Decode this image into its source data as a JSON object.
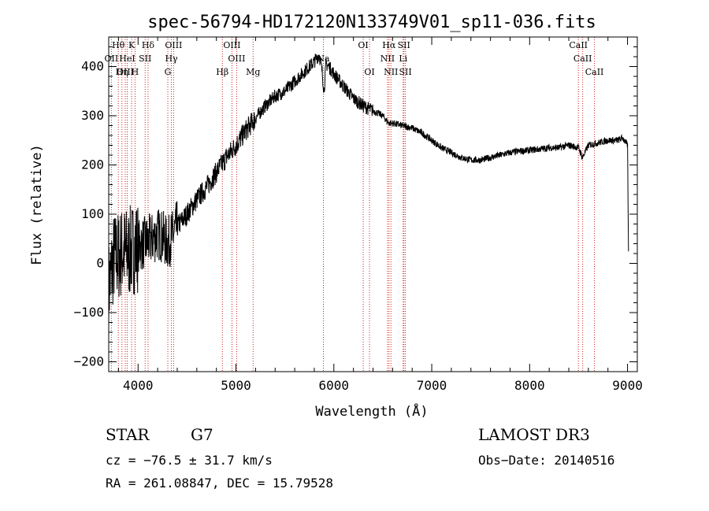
{
  "chart_data": {
    "type": "line",
    "title": "spec-56794-HD172120N133749V01_sp11-036.fits",
    "xlabel": "Wavelength (Å)",
    "ylabel": "Flux (relative)",
    "xlim": [
      3700,
      9100
    ],
    "ylim": [
      -220,
      460
    ],
    "xticks": [
      4000,
      5000,
      6000,
      7000,
      8000,
      9000
    ],
    "yticks": [
      -200,
      -100,
      0,
      100,
      200,
      300,
      400
    ],
    "series": [
      {
        "name": "flux",
        "x": [
          3700,
          3750,
          3800,
          3850,
          3900,
          3950,
          4000,
          4050,
          4100,
          4150,
          4200,
          4250,
          4300,
          4350,
          4400,
          4500,
          4600,
          4700,
          4800,
          4900,
          5000,
          5100,
          5200,
          5300,
          5400,
          5500,
          5600,
          5700,
          5800,
          5850,
          5880,
          5900,
          5920,
          5950,
          6000,
          6100,
          6200,
          6300,
          6400,
          6500,
          6560,
          6600,
          6700,
          6800,
          6900,
          7000,
          7100,
          7200,
          7300,
          7400,
          7500,
          7600,
          7700,
          7800,
          7900,
          8000,
          8100,
          8200,
          8300,
          8400,
          8500,
          8540,
          8600,
          8700,
          8800,
          8900,
          8950,
          9000,
          9010
        ],
        "y": [
          -50,
          10,
          15,
          25,
          20,
          30,
          35,
          40,
          45,
          50,
          60,
          55,
          40,
          55,
          75,
          100,
          130,
          155,
          185,
          215,
          240,
          270,
          295,
          320,
          340,
          350,
          370,
          390,
          410,
          425,
          390,
          350,
          405,
          400,
          385,
          360,
          335,
          320,
          310,
          300,
          285,
          285,
          280,
          275,
          265,
          250,
          235,
          225,
          215,
          210,
          210,
          215,
          220,
          225,
          228,
          230,
          232,
          235,
          235,
          240,
          235,
          215,
          240,
          245,
          250,
          250,
          255,
          240,
          20
        ]
      }
    ],
    "spectral_lines": [
      {
        "label": "Hθ",
        "wave": 3798,
        "row": 0
      },
      {
        "label": "OII",
        "wave": 3727,
        "row": 1
      },
      {
        "label": "OIII",
        "wave": 3869,
        "row": 2
      },
      {
        "label": "Hη",
        "wave": 3835,
        "row": 2
      },
      {
        "label": "HeI",
        "wave": 3889,
        "row": 1
      },
      {
        "label": "K",
        "wave": 3934,
        "row": 0
      },
      {
        "label": "H",
        "wave": 3969,
        "row": 2
      },
      {
        "label": "SII",
        "wave": 4072,
        "row": 1
      },
      {
        "label": "Hδ",
        "wave": 4102,
        "row": 0
      },
      {
        "label": "OIII",
        "wave": 4363,
        "row": 0
      },
      {
        "label": "Hγ",
        "wave": 4340,
        "row": 1
      },
      {
        "label": "G",
        "wave": 4304,
        "row": 2
      },
      {
        "label": "OIII",
        "wave": 4959,
        "row": 0
      },
      {
        "label": "OIII",
        "wave": 5007,
        "row": 1
      },
      {
        "label": "Hβ",
        "wave": 4861,
        "row": 2
      },
      {
        "label": "Mg",
        "wave": 5175,
        "row": 2
      },
      {
        "label": "Na",
        "wave": 5893,
        "row": 1
      },
      {
        "label": "OI",
        "wave": 6300,
        "row": 0
      },
      {
        "label": "OI",
        "wave": 6364,
        "row": 2
      },
      {
        "label": "Hα",
        "wave": 6563,
        "row": 0
      },
      {
        "label": "NII",
        "wave": 6548,
        "row": 1
      },
      {
        "label": "NII",
        "wave": 6583,
        "row": 2
      },
      {
        "label": "SII",
        "wave": 6716,
        "row": 0
      },
      {
        "label": "Li",
        "wave": 6708,
        "row": 1
      },
      {
        "label": "SII",
        "wave": 6731,
        "row": 2
      },
      {
        "label": "CaII",
        "wave": 8498,
        "row": 0
      },
      {
        "label": "CaII",
        "wave": 8542,
        "row": 1
      },
      {
        "label": "CaII",
        "wave": 8662,
        "row": 2
      }
    ]
  },
  "info": {
    "object_class": "STAR",
    "subclass": "G7",
    "survey": "LAMOST DR3",
    "cz": "cz = −76.5 ± 31.7 km/s",
    "obs_date": "Obs−Date: 20140516",
    "coords": "RA = 261.08847, DEC =  15.79528"
  }
}
